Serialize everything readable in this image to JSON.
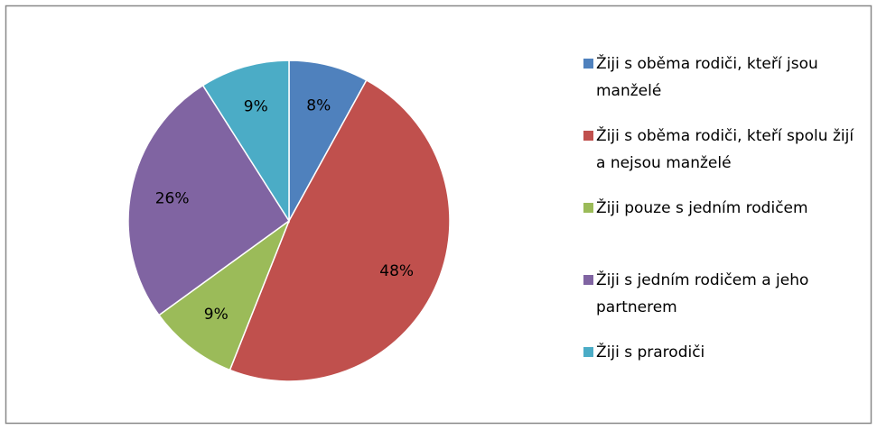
{
  "chart_data": {
    "type": "pie",
    "categories": [
      "Žiji s oběma rodiči, kteří jsou manželé",
      "Žiji s oběma rodiči, kteří spolu žijí a nejsou manželé",
      "Žiji pouze s jedním rodičem",
      "Žiji s jedním rodičem a jeho partnerem",
      "Žiji s prarodiči"
    ],
    "values": [
      8,
      48,
      9,
      26,
      9
    ],
    "value_labels": [
      "8%",
      "48%",
      "9%",
      "26%",
      "9%"
    ],
    "colors": [
      "#4f81bd",
      "#c0504d",
      "#9bbb59",
      "#8064a2",
      "#4bacc6"
    ],
    "legend": "right"
  }
}
